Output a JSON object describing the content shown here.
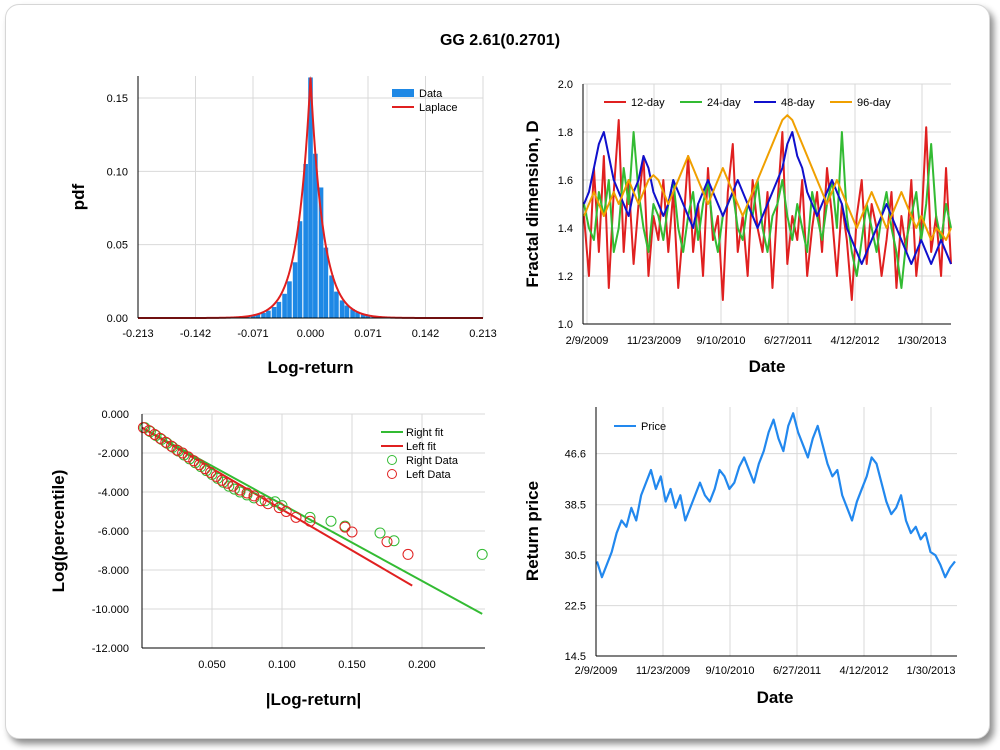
{
  "page": {
    "title": "GG 2.61(0.2701)"
  },
  "chart_data": [
    {
      "id": "pdf-hist",
      "type": "bar",
      "xlabel": "Log-return",
      "ylabel": "pdf",
      "xlim": [
        -0.213,
        0.213
      ],
      "ylim": [
        0,
        0.165
      ],
      "x_ticks": [
        -0.213,
        -0.142,
        -0.071,
        0.0,
        0.071,
        0.142,
        0.213
      ],
      "x_tick_labels": [
        "-0.213",
        "-0.142",
        "-0.071",
        "0.000",
        "0.071",
        "0.142",
        "0.213"
      ],
      "y_ticks": [
        0,
        0.05,
        0.1,
        0.15
      ],
      "y_tick_labels": [
        "0.00",
        "0.05",
        "0.10",
        "0.15"
      ],
      "legend": {
        "position": "top-right",
        "entries": [
          "Data",
          "Laplace"
        ]
      },
      "colors": {
        "data": "#1e88e5",
        "fit": "#e02020"
      },
      "bin_width": 0.00645,
      "bins": [
        [
          -0.11,
          0.0002
        ],
        [
          -0.097,
          0.0003
        ],
        [
          -0.09,
          0.0006
        ],
        [
          -0.084,
          0.0009
        ],
        [
          -0.078,
          0.0012
        ],
        [
          -0.071,
          0.0018
        ],
        [
          -0.065,
          0.0025
        ],
        [
          -0.058,
          0.0035
        ],
        [
          -0.052,
          0.005
        ],
        [
          -0.045,
          0.0075
        ],
        [
          -0.039,
          0.011
        ],
        [
          -0.032,
          0.0165
        ],
        [
          -0.026,
          0.025
        ],
        [
          -0.019,
          0.038
        ],
        [
          -0.013,
          0.066
        ],
        [
          -0.006,
          0.105
        ],
        [
          0.0,
          0.164
        ],
        [
          0.006,
          0.112
        ],
        [
          0.013,
          0.089
        ],
        [
          0.019,
          0.048
        ],
        [
          0.026,
          0.029
        ],
        [
          0.032,
          0.018
        ],
        [
          0.039,
          0.012
        ],
        [
          0.045,
          0.0085
        ],
        [
          0.052,
          0.006
        ],
        [
          0.058,
          0.004
        ],
        [
          0.065,
          0.0028
        ],
        [
          0.071,
          0.002
        ],
        [
          0.078,
          0.0015
        ],
        [
          0.084,
          0.001
        ],
        [
          0.09,
          0.0006
        ],
        [
          0.097,
          0.0005
        ],
        [
          0.103,
          0.0004
        ],
        [
          0.11,
          0.0003
        ],
        [
          0.116,
          0.0002
        ],
        [
          0.142,
          0.0001
        ]
      ],
      "laplace": {
        "mu": 0.0,
        "b": 0.0032,
        "peak": 0.164,
        "scale": 0.0157
      }
    },
    {
      "id": "fractal-dim",
      "type": "line",
      "xlabel": "Date",
      "ylabel": "Fractal dimension, D",
      "ylim": [
        1.0,
        2.0
      ],
      "x_tick_labels": [
        "2/9/2009",
        "11/23/2009",
        "9/10/2010",
        "6/27/2011",
        "4/12/2012",
        "1/30/2013"
      ],
      "y_tick_labels": [
        "1.0",
        "1.2",
        "1.4",
        "1.6",
        "1.8",
        "2.0"
      ],
      "legend": {
        "position": "top-left",
        "entries": [
          "12-day",
          "24-day",
          "48-day",
          "96-day"
        ]
      },
      "series": [
        {
          "name": "12-day",
          "color": "#e02020",
          "values": [
            1.45,
            1.2,
            1.65,
            1.3,
            1.7,
            1.15,
            1.55,
            1.85,
            1.3,
            1.6,
            1.25,
            1.5,
            1.7,
            1.2,
            1.45,
            1.35,
            1.6,
            1.3,
            1.55,
            1.15,
            1.4,
            1.7,
            1.3,
            1.5,
            1.2,
            1.65,
            1.35,
            1.45,
            1.1,
            1.55,
            1.75,
            1.3,
            1.45,
            1.2,
            1.6,
            1.4,
            1.3,
            1.55,
            1.15,
            1.5,
            1.8,
            1.25,
            1.45,
            1.35,
            1.6,
            1.2,
            1.4,
            1.55,
            1.3,
            1.65,
            1.45,
            1.2,
            1.5,
            1.35,
            1.1,
            1.45,
            1.6,
            1.25,
            1.5,
            1.4,
            1.2,
            1.35,
            1.55,
            1.15,
            1.45,
            1.3,
            1.6,
            1.2,
            1.4,
            1.82,
            1.3,
            1.45,
            1.2,
            1.65,
            1.25
          ]
        },
        {
          "name": "24-day",
          "color": "#33bb33",
          "values": [
            1.5,
            1.4,
            1.35,
            1.55,
            1.45,
            1.6,
            1.3,
            1.4,
            1.65,
            1.5,
            1.8,
            1.55,
            1.4,
            1.3,
            1.5,
            1.45,
            1.35,
            1.5,
            1.6,
            1.4,
            1.3,
            1.45,
            1.55,
            1.35,
            1.5,
            1.6,
            1.4,
            1.3,
            1.45,
            1.5,
            1.55,
            1.4,
            1.35,
            1.5,
            1.45,
            1.6,
            1.4,
            1.3,
            1.45,
            1.5,
            1.6,
            1.45,
            1.35,
            1.5,
            1.4,
            1.3,
            1.55,
            1.45,
            1.35,
            1.5,
            1.6,
            1.4,
            1.8,
            1.45,
            1.3,
            1.2,
            1.35,
            1.5,
            1.4,
            1.3,
            1.45,
            1.55,
            1.4,
            1.3,
            1.15,
            1.35,
            1.45,
            1.55,
            1.35,
            1.5,
            1.75,
            1.45,
            1.35,
            1.5,
            1.4
          ]
        },
        {
          "name": "48-day",
          "color": "#1010cc",
          "values": [
            1.5,
            1.55,
            1.65,
            1.75,
            1.8,
            1.7,
            1.6,
            1.55,
            1.5,
            1.45,
            1.55,
            1.6,
            1.7,
            1.65,
            1.55,
            1.5,
            1.45,
            1.5,
            1.6,
            1.55,
            1.5,
            1.45,
            1.4,
            1.5,
            1.55,
            1.6,
            1.55,
            1.5,
            1.45,
            1.5,
            1.55,
            1.6,
            1.55,
            1.5,
            1.45,
            1.4,
            1.45,
            1.5,
            1.55,
            1.6,
            1.65,
            1.75,
            1.8,
            1.7,
            1.65,
            1.55,
            1.5,
            1.45,
            1.5,
            1.55,
            1.6,
            1.55,
            1.5,
            1.4,
            1.35,
            1.3,
            1.25,
            1.3,
            1.35,
            1.4,
            1.45,
            1.5,
            1.45,
            1.4,
            1.35,
            1.3,
            1.25,
            1.3,
            1.35,
            1.3,
            1.25,
            1.3,
            1.35,
            1.3,
            1.25
          ]
        },
        {
          "name": "96-day",
          "color": "#f0a000",
          "values": [
            1.45,
            1.5,
            1.55,
            1.5,
            1.45,
            1.5,
            1.55,
            1.5,
            1.55,
            1.6,
            1.55,
            1.5,
            1.55,
            1.6,
            1.62,
            1.6,
            1.55,
            1.5,
            1.55,
            1.6,
            1.65,
            1.7,
            1.65,
            1.6,
            1.55,
            1.5,
            1.55,
            1.6,
            1.65,
            1.6,
            1.55,
            1.5,
            1.45,
            1.5,
            1.55,
            1.6,
            1.65,
            1.7,
            1.75,
            1.8,
            1.85,
            1.87,
            1.85,
            1.8,
            1.75,
            1.7,
            1.65,
            1.6,
            1.55,
            1.5,
            1.55,
            1.6,
            1.55,
            1.5,
            1.45,
            1.4,
            1.45,
            1.5,
            1.55,
            1.5,
            1.45,
            1.4,
            1.45,
            1.5,
            1.55,
            1.5,
            1.45,
            1.4,
            1.45,
            1.4,
            1.35,
            1.4,
            1.38,
            1.35,
            1.4
          ]
        }
      ]
    },
    {
      "id": "log-percentile",
      "type": "scatter",
      "xlabel": "|Log-return|",
      "ylabel": "Log(percentile)",
      "xlim": [
        0.0,
        0.245
      ],
      "ylim": [
        -12,
        0
      ],
      "x_ticks": [
        0.05,
        0.1,
        0.15,
        0.2
      ],
      "x_tick_labels": [
        "0.050",
        "0.100",
        "0.150",
        "0.200"
      ],
      "y_ticks": [
        0,
        -2,
        -4,
        -6,
        -8,
        -10,
        -12
      ],
      "y_tick_labels": [
        "0.000",
        "-2.000",
        "-4.000",
        "-6.000",
        "-8.000",
        "-10.000",
        "-12.000"
      ],
      "legend": {
        "position": "top-right",
        "entries": [
          "Right fit",
          "Left fit",
          "Right Data",
          "Left Data"
        ]
      },
      "colors": {
        "right": "#33bb33",
        "left": "#e02020"
      },
      "right_fit": [
        [
          0.0,
          -0.7
        ],
        [
          0.243,
          -10.25
        ]
      ],
      "left_fit": [
        [
          0.0,
          -0.7
        ],
        [
          0.193,
          -8.8
        ]
      ],
      "right_data": [
        [
          0.002,
          -0.7
        ],
        [
          0.006,
          -0.9
        ],
        [
          0.01,
          -1.1
        ],
        [
          0.014,
          -1.3
        ],
        [
          0.018,
          -1.5
        ],
        [
          0.022,
          -1.7
        ],
        [
          0.026,
          -1.9
        ],
        [
          0.03,
          -2.1
        ],
        [
          0.034,
          -2.3
        ],
        [
          0.038,
          -2.5
        ],
        [
          0.042,
          -2.7
        ],
        [
          0.046,
          -2.9
        ],
        [
          0.05,
          -3.1
        ],
        [
          0.054,
          -3.3
        ],
        [
          0.058,
          -3.5
        ],
        [
          0.062,
          -3.7
        ],
        [
          0.066,
          -3.85
        ],
        [
          0.07,
          -4.0
        ],
        [
          0.075,
          -4.15
        ],
        [
          0.08,
          -4.3
        ],
        [
          0.088,
          -4.45
        ],
        [
          0.095,
          -4.5
        ],
        [
          0.1,
          -4.7
        ],
        [
          0.12,
          -5.3
        ],
        [
          0.135,
          -5.5
        ],
        [
          0.145,
          -5.75
        ],
        [
          0.17,
          -6.1
        ],
        [
          0.18,
          -6.5
        ],
        [
          0.243,
          -7.2
        ]
      ],
      "left_data": [
        [
          0.001,
          -0.7
        ],
        [
          0.005,
          -0.85
        ],
        [
          0.009,
          -1.05
        ],
        [
          0.013,
          -1.25
        ],
        [
          0.017,
          -1.45
        ],
        [
          0.021,
          -1.65
        ],
        [
          0.025,
          -1.85
        ],
        [
          0.029,
          -2.0
        ],
        [
          0.033,
          -2.2
        ],
        [
          0.037,
          -2.4
        ],
        [
          0.041,
          -2.6
        ],
        [
          0.045,
          -2.8
        ],
        [
          0.049,
          -3.0
        ],
        [
          0.053,
          -3.2
        ],
        [
          0.057,
          -3.4
        ],
        [
          0.061,
          -3.55
        ],
        [
          0.065,
          -3.7
        ],
        [
          0.07,
          -3.9
        ],
        [
          0.075,
          -4.05
        ],
        [
          0.08,
          -4.2
        ],
        [
          0.085,
          -4.45
        ],
        [
          0.09,
          -4.6
        ],
        [
          0.098,
          -4.8
        ],
        [
          0.103,
          -5.0
        ],
        [
          0.11,
          -5.3
        ],
        [
          0.12,
          -5.5
        ],
        [
          0.145,
          -5.8
        ],
        [
          0.15,
          -6.05
        ],
        [
          0.175,
          -6.55
        ],
        [
          0.19,
          -7.2
        ]
      ]
    },
    {
      "id": "return-price",
      "type": "line",
      "xlabel": "Date",
      "ylabel": "Return price",
      "ylim": [
        14.5,
        54.0
      ],
      "x_tick_labels": [
        "2/9/2009",
        "11/23/2009",
        "9/10/2010",
        "6/27/2011",
        "4/12/2012",
        "1/30/2013"
      ],
      "y_ticks": [
        14.5,
        22.5,
        30.5,
        38.5,
        46.6
      ],
      "y_tick_labels": [
        "14.5",
        "22.5",
        "30.5",
        "38.5",
        "46.6"
      ],
      "legend": {
        "position": "top-left",
        "entries": [
          "Price"
        ]
      },
      "series": [
        {
          "name": "Price",
          "color": "#2288ee",
          "values": [
            29.5,
            27.0,
            29.0,
            31.0,
            34.0,
            36.0,
            35.0,
            38.0,
            36.0,
            40.0,
            42.0,
            44.0,
            41.0,
            43.0,
            39.0,
            41.0,
            38.0,
            40.0,
            36.0,
            38.0,
            40.0,
            42.0,
            40.0,
            39.0,
            41.0,
            44.0,
            43.0,
            41.0,
            42.0,
            44.5,
            46.0,
            44.0,
            42.0,
            45.0,
            47.0,
            50.0,
            52.0,
            49.0,
            47.0,
            51.0,
            53.0,
            50.0,
            48.0,
            46.0,
            49.0,
            51.0,
            48.0,
            45.0,
            43.0,
            44.0,
            40.0,
            38.0,
            36.0,
            39.0,
            41.0,
            43.0,
            46.0,
            45.0,
            42.0,
            39.0,
            37.0,
            38.0,
            40.0,
            36.0,
            34.0,
            35.0,
            33.0,
            34.0,
            31.0,
            30.5,
            29.0,
            27.0,
            28.5,
            29.5
          ]
        }
      ]
    }
  ]
}
